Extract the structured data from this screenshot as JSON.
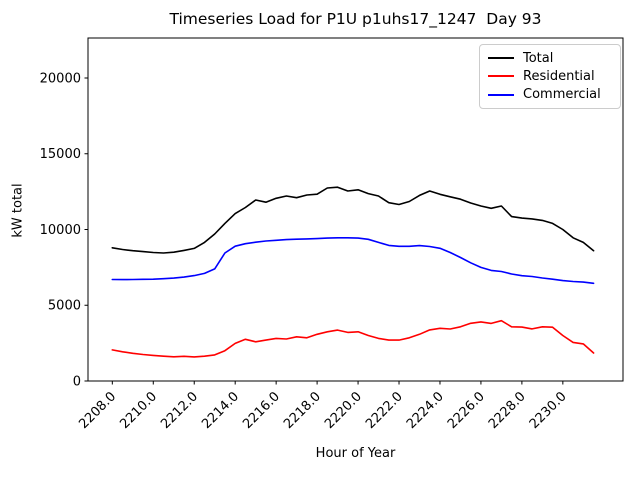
{
  "chart_data": {
    "type": "line",
    "title": "Timeseries Load for P1U p1uhs17_1247  Day 93",
    "xlabel": "Hour of Year",
    "ylabel": "kW total",
    "grid": false,
    "legend_position": "upper right",
    "xlim": [
      2206.8125,
      2232.9375
    ],
    "ylim": [
      0,
      22640
    ],
    "x_ticks": [
      2208,
      2210,
      2212,
      2214,
      2216,
      2218,
      2220,
      2222,
      2224,
      2226,
      2228,
      2230
    ],
    "x_tick_decimals": 1,
    "x_tick_rotation_deg": 45,
    "y_ticks": [
      0,
      5000,
      10000,
      15000,
      20000
    ],
    "x_start": 2208.0,
    "x_step_hours": 0.5,
    "axis_color": "#000000",
    "series": [
      {
        "name": "Total",
        "color": "#000000",
        "values": [
          8790,
          8680,
          8600,
          8540,
          8480,
          8450,
          8500,
          8620,
          8750,
          9150,
          9700,
          10400,
          11050,
          11450,
          11950,
          11800,
          12060,
          12210,
          12100,
          12280,
          12330,
          12740,
          12790,
          12540,
          12620,
          12370,
          12210,
          11770,
          11650,
          11850,
          12250,
          12540,
          12320,
          12160,
          12000,
          11750,
          11550,
          11400,
          11550,
          10850,
          10750,
          10700,
          10600,
          10400,
          10000,
          9450,
          9150,
          8600
        ]
      },
      {
        "name": "Residential",
        "color": "#ff0000",
        "values": [
          2050,
          1930,
          1830,
          1750,
          1690,
          1640,
          1600,
          1630,
          1590,
          1640,
          1720,
          2000,
          2480,
          2750,
          2590,
          2700,
          2810,
          2770,
          2920,
          2850,
          3080,
          3250,
          3360,
          3210,
          3250,
          3000,
          2810,
          2700,
          2700,
          2850,
          3080,
          3370,
          3480,
          3430,
          3580,
          3810,
          3900,
          3800,
          3980,
          3580,
          3560,
          3440,
          3580,
          3550,
          3000,
          2550,
          2450,
          1850
        ]
      },
      {
        "name": "Commercial",
        "color": "#0000ff",
        "values": [
          6700,
          6690,
          6700,
          6710,
          6720,
          6750,
          6790,
          6860,
          6960,
          7100,
          7400,
          8450,
          8900,
          9060,
          9160,
          9240,
          9290,
          9330,
          9360,
          9380,
          9400,
          9430,
          9450,
          9450,
          9430,
          9350,
          9150,
          8950,
          8890,
          8890,
          8940,
          8880,
          8760,
          8480,
          8150,
          7800,
          7500,
          7300,
          7230,
          7060,
          6950,
          6900,
          6800,
          6720,
          6630,
          6570,
          6530,
          6450
        ]
      }
    ]
  }
}
